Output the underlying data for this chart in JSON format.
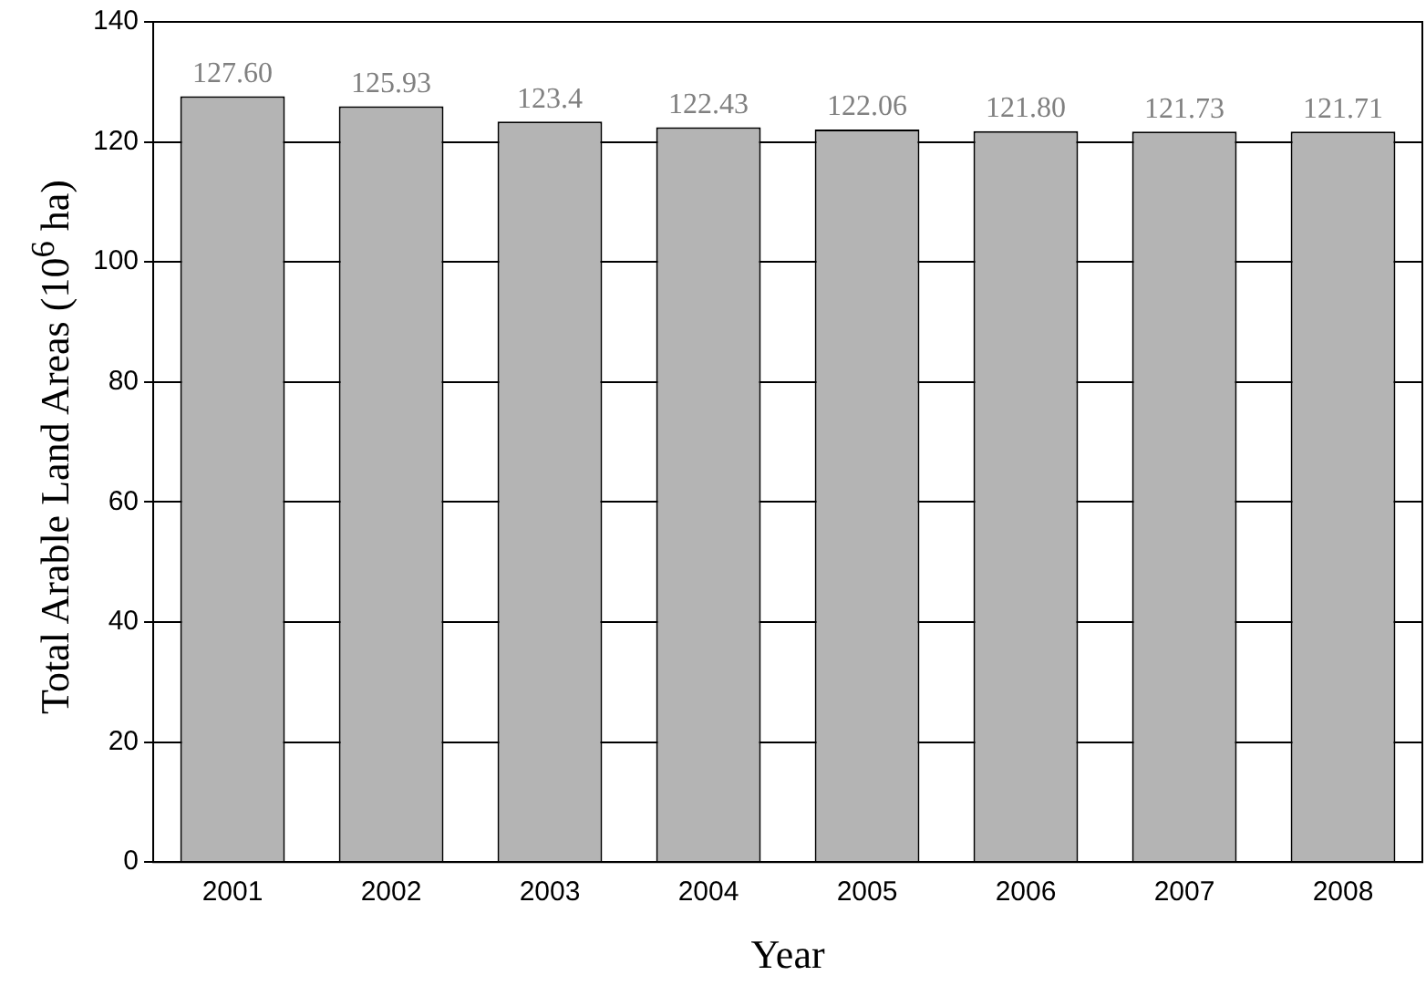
{
  "chart_data": {
    "type": "bar",
    "xlabel": "Year",
    "ylabel": "Total Arable Land Areas (10$^{6}$ ha)",
    "categories": [
      "2001",
      "2002",
      "2003",
      "2004",
      "2005",
      "2006",
      "2007",
      "2008"
    ],
    "values": [
      127.6,
      125.93,
      123.4,
      122.43,
      122.06,
      121.8,
      121.73,
      121.71
    ],
    "value_labels": [
      "127.60",
      "125.93",
      "123.4",
      "122.43",
      "122.06",
      "121.80",
      "121.73",
      "121.71"
    ],
    "color": "#b4b4b4",
    "ylim": [
      0,
      140
    ],
    "yticks": [
      0,
      20,
      40,
      60,
      80,
      100,
      120,
      140
    ],
    "grid": "y",
    "legend": false
  }
}
